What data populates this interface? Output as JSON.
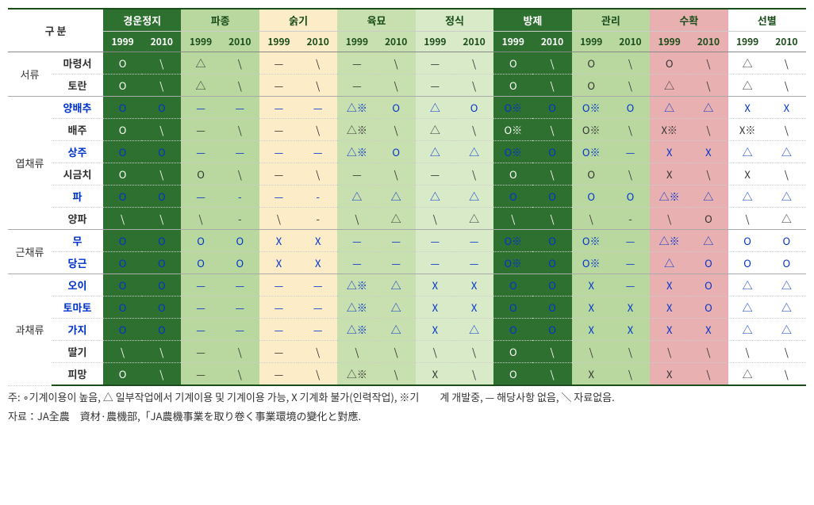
{
  "colors": {
    "dark_green": "#2e7030",
    "mid_green": "#b8d8a0",
    "cream": "#fcecc8",
    "light_green1": "#c8e0b0",
    "light_green2": "#d8eac8",
    "pink": "#e8b0b0",
    "white": "#ffffff",
    "header_text": "#1a4d1a",
    "blue_text": "#0033cc"
  },
  "header": {
    "category": "구 분",
    "operations": [
      "경운정지",
      "파종",
      "숡기",
      "육묘",
      "정식",
      "방제",
      "관리",
      "수확",
      "선별"
    ],
    "years": [
      "1999",
      "2010"
    ]
  },
  "highlight_cols": {
    "0": "dark_green",
    "1": "mid_green",
    "2": "cream",
    "3": "light_green1",
    "4": "light_green2",
    "5": "dark_green",
    "6": "mid_green",
    "7": "pink",
    "8": "white"
  },
  "groups": [
    {
      "name": "서류",
      "rows": [
        {
          "crop": "마령서",
          "blue": false,
          "cells": [
            "O",
            "\\",
            "△",
            "\\",
            "—",
            "\\",
            "—",
            "\\",
            "—",
            "\\",
            "O",
            "\\",
            "O",
            "\\",
            "O",
            "\\",
            "△",
            "\\"
          ]
        },
        {
          "crop": "토란",
          "blue": false,
          "cells": [
            "O",
            "\\",
            "△",
            "\\",
            "—",
            "\\",
            "—",
            "\\",
            "—",
            "\\",
            "O",
            "\\",
            "O",
            "\\",
            "△",
            "\\",
            "△",
            "\\"
          ]
        }
      ]
    },
    {
      "name": "엽채류",
      "rows": [
        {
          "crop": "양배추",
          "blue": true,
          "cells": [
            "O",
            "O",
            "—",
            "—",
            "—",
            "—",
            "△※",
            "O",
            "△",
            "O",
            "O※",
            "O",
            "O※",
            "O",
            "△",
            "△",
            "X",
            "X"
          ]
        },
        {
          "crop": "배주",
          "blue": false,
          "cells": [
            "O",
            "\\",
            "—",
            "\\",
            "—",
            "\\",
            "△※",
            "\\",
            "△",
            "\\",
            "O※",
            "\\",
            "O※",
            "\\",
            "X※",
            "\\",
            "X※",
            "\\"
          ]
        },
        {
          "crop": "상주",
          "blue": true,
          "cells": [
            "O",
            "O",
            "—",
            "—",
            "—",
            "—",
            "△※",
            "O",
            "△",
            "△",
            "O※",
            "O",
            "O※",
            "—",
            "X",
            "X",
            "△",
            "△"
          ]
        },
        {
          "crop": "시금치",
          "blue": false,
          "cells": [
            "O",
            "\\",
            "O",
            "\\",
            "—",
            "\\",
            "—",
            "\\",
            "—",
            "\\",
            "O",
            "\\",
            "O",
            "\\",
            "X",
            "\\",
            "X",
            "\\"
          ]
        },
        {
          "crop": "파",
          "blue": true,
          "cells": [
            "O",
            "O",
            "—",
            "-",
            "—",
            "-",
            "△",
            "△",
            "△",
            "△",
            "O",
            "O",
            "O",
            "O",
            "△※",
            "△",
            "△",
            "△"
          ]
        },
        {
          "crop": "양파",
          "blue": false,
          "cells": [
            "\\",
            "\\",
            "\\",
            "-",
            "\\",
            "-",
            "\\",
            "△",
            "\\",
            "△",
            "\\",
            "\\",
            "\\",
            "-",
            "\\",
            "O",
            "\\",
            "△"
          ]
        }
      ]
    },
    {
      "name": "근채류",
      "rows": [
        {
          "crop": "무",
          "blue": true,
          "cells": [
            "O",
            "O",
            "O",
            "O",
            "X",
            "X",
            "—",
            "—",
            "—",
            "—",
            "O※",
            "O",
            "O※",
            "—",
            "△※",
            "△",
            "O",
            "O"
          ]
        },
        {
          "crop": "당근",
          "blue": true,
          "cells": [
            "O",
            "O",
            "O",
            "O",
            "X",
            "X",
            "—",
            "—",
            "—",
            "—",
            "O※",
            "O",
            "O※",
            "—",
            "△",
            "O",
            "O",
            "O"
          ]
        }
      ]
    },
    {
      "name": "과채류",
      "rows": [
        {
          "crop": "오이",
          "blue": true,
          "cells": [
            "O",
            "O",
            "—",
            "—",
            "—",
            "—",
            "△※",
            "△",
            "X",
            "X",
            "O",
            "O",
            "X",
            "—",
            "X",
            "O",
            "△",
            "△"
          ]
        },
        {
          "crop": "토마토",
          "blue": true,
          "cells": [
            "O",
            "O",
            "—",
            "—",
            "—",
            "—",
            "△※",
            "△",
            "X",
            "X",
            "O",
            "O",
            "X",
            "X",
            "X",
            "O",
            "△",
            "△"
          ]
        },
        {
          "crop": "가지",
          "blue": true,
          "cells": [
            "O",
            "O",
            "—",
            "—",
            "—",
            "—",
            "△※",
            "△",
            "X",
            "△",
            "O",
            "O",
            "X",
            "X",
            "X",
            "X",
            "△",
            "△"
          ]
        },
        {
          "crop": "딸기",
          "blue": false,
          "cells": [
            "\\",
            "\\",
            "—",
            "\\",
            "—",
            "\\",
            "\\",
            "\\",
            "\\",
            "\\",
            "O",
            "\\",
            "\\",
            "\\",
            "\\",
            "\\",
            "\\",
            "\\"
          ]
        },
        {
          "crop": "피망",
          "blue": false,
          "cells": [
            "O",
            "\\",
            "—",
            "\\",
            "—",
            "\\",
            "△※",
            "\\",
            "X",
            "\\",
            "O",
            "\\",
            "X",
            "\\",
            "X",
            "\\",
            "△",
            "\\"
          ]
        }
      ]
    }
  ],
  "footnotes": [
    "주: ∘기계이용이 높음, △ 일부작업에서 기계이용 및 기계이용 가능, X 기계화 불가(인력작업), ※기　　계 개발중, — 해당사항 없음, ＼ 자료없음.",
    "자료：JA全農　資材·農機部,「JA農機事業を取り卷く事業環境の變化と對應."
  ]
}
